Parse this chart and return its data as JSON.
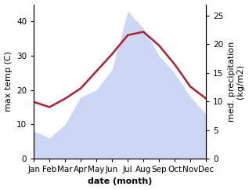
{
  "months": [
    "Jan",
    "Feb",
    "Mar",
    "Apr",
    "May",
    "Jun",
    "Jul",
    "Aug",
    "Sep",
    "Oct",
    "Nov",
    "Dec"
  ],
  "month_indices": [
    1,
    2,
    3,
    4,
    5,
    6,
    7,
    8,
    9,
    10,
    11,
    12
  ],
  "max_temp": [
    16.5,
    15.0,
    17.5,
    20.5,
    25.5,
    30.5,
    36.0,
    37.0,
    33.0,
    27.5,
    21.0,
    17.5
  ],
  "precipitation": [
    8.0,
    6.0,
    10.0,
    18.0,
    20.0,
    26.0,
    43.0,
    38.0,
    30.0,
    25.0,
    18.0,
    13.0
  ],
  "temp_color": "#aa2233",
  "precip_fill_color": "#c5cff0",
  "ylabel_left": "max temp (C)",
  "ylabel_right": "med. precipitation\n(kg/m2)",
  "xlabel": "date (month)",
  "ylim_left": [
    0,
    45
  ],
  "ylim_right": [
    0,
    27
  ],
  "yticks_left": [
    0,
    10,
    20,
    30,
    40
  ],
  "yticks_right": [
    0,
    5,
    10,
    15,
    20,
    25
  ],
  "background_color": "#ffffff",
  "label_fontsize": 8,
  "tick_fontsize": 7.5
}
